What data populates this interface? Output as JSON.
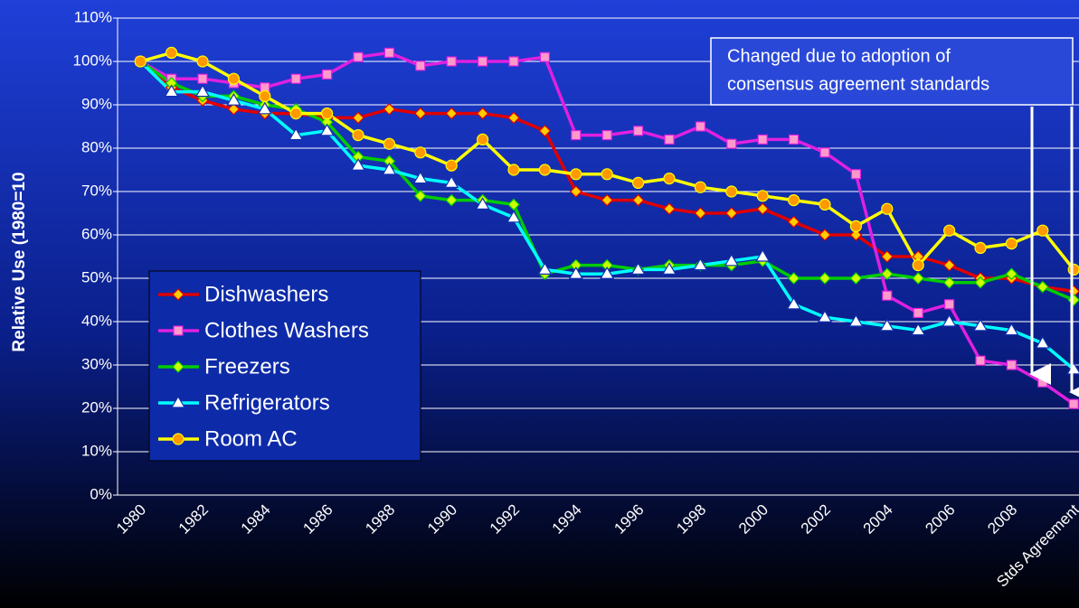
{
  "chart_data": {
    "type": "line",
    "y_label": "Relative Use (1980=10",
    "annotation": [
      "Changed due to adoption of",
      "consensus agreement standards"
    ],
    "categories": [
      "1980",
      null,
      "1982",
      null,
      "1984",
      null,
      "1986",
      null,
      "1988",
      null,
      "1990",
      null,
      "1992",
      null,
      "1994",
      null,
      "1996",
      null,
      "1998",
      null,
      "2000",
      null,
      "2002",
      null,
      "2004",
      null,
      "2006",
      null,
      "2008",
      null,
      "Stds Agreement"
    ],
    "series": [
      {
        "name": "Dishwashers",
        "color": "#e00000",
        "marker": "diamond",
        "marker_color": "#ffcc00",
        "values": [
          100,
          94,
          91,
          89,
          88,
          88,
          87,
          87,
          89,
          88,
          88,
          88,
          87,
          84,
          70,
          68,
          68,
          66,
          65,
          65,
          66,
          63,
          60,
          60,
          55,
          55,
          53,
          50,
          50,
          48,
          47
        ]
      },
      {
        "name": "Clothes Washers",
        "color": "#e020e0",
        "marker": "square",
        "marker_color": "#ff99cc",
        "values": [
          100,
          96,
          96,
          95,
          94,
          96,
          97,
          101,
          102,
          99,
          100,
          100,
          100,
          101,
          83,
          83,
          84,
          82,
          85,
          81,
          82,
          82,
          79,
          74,
          46,
          42,
          44,
          31,
          30,
          26,
          21
        ]
      },
      {
        "name": "Freezers",
        "color": "#00cc00",
        "marker": "diamond",
        "marker_color": "#ccff00",
        "values": [
          100,
          95,
          92,
          92,
          90,
          89,
          86,
          78,
          77,
          69,
          68,
          68,
          67,
          51,
          53,
          53,
          52,
          53,
          53,
          53,
          54,
          50,
          50,
          50,
          51,
          50,
          49,
          49,
          51,
          48,
          45
        ]
      },
      {
        "name": "Refrigerators",
        "color": "#00ffff",
        "marker": "triangle",
        "marker_color": "#ffffff",
        "values": [
          100,
          93,
          93,
          91,
          89,
          83,
          84,
          76,
          75,
          73,
          72,
          67,
          64,
          52,
          51,
          51,
          52,
          52,
          53,
          54,
          55,
          44,
          41,
          40,
          39,
          38,
          40,
          39,
          38,
          35,
          29
        ]
      },
      {
        "name": "Room AC",
        "color": "#ffff00",
        "marker": "circle",
        "marker_color": "#ff9900",
        "values": [
          100,
          102,
          100,
          96,
          92,
          88,
          88,
          83,
          81,
          79,
          76,
          82,
          75,
          75,
          74,
          74,
          72,
          73,
          71,
          70,
          69,
          68,
          67,
          62,
          66,
          53,
          61,
          57,
          58,
          61,
          52
        ]
      }
    ],
    "ylim": [
      0,
      110
    ],
    "yticks": [
      {
        "value": 0,
        "label": "0%"
      },
      {
        "value": 10,
        "label": "10%"
      },
      {
        "value": 20,
        "label": "20%"
      },
      {
        "value": 30,
        "label": "30%"
      },
      {
        "value": 40,
        "label": "40%"
      },
      {
        "value": 50,
        "label": "50%"
      },
      {
        "value": 60,
        "label": "60%"
      },
      {
        "value": 70,
        "label": "70%"
      },
      {
        "value": 80,
        "label": "80%"
      },
      {
        "value": 90,
        "label": "90%"
      },
      {
        "value": 100,
        "label": "100%"
      },
      {
        "value": 110,
        "label": "110%"
      }
    ],
    "grid": true
  }
}
